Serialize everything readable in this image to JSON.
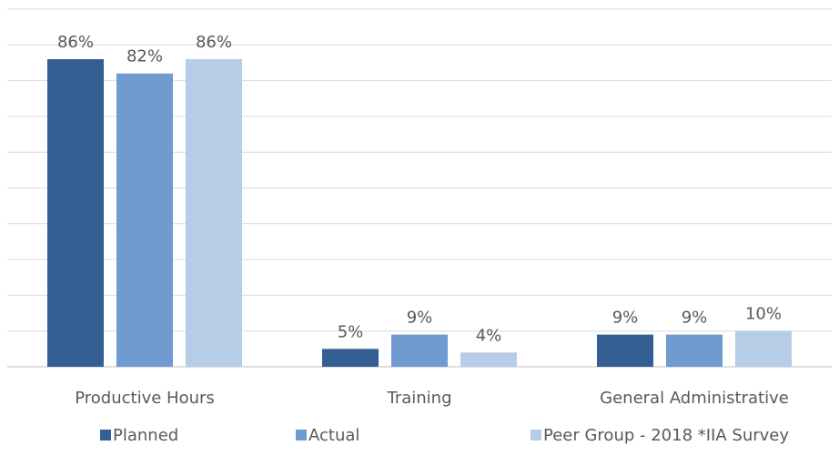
{
  "chart_data": {
    "type": "bar",
    "categories": [
      "Productive Hours",
      "Training",
      "General Administrative"
    ],
    "series": [
      {
        "name": "Planned",
        "color": "#335f92",
        "values": [
          86,
          5,
          9
        ],
        "value_labels": [
          "86%",
          "5%",
          "9%"
        ]
      },
      {
        "name": "Actual",
        "color": "#6f9bd0",
        "values": [
          82,
          9,
          9
        ],
        "value_labels": [
          "82%",
          "9%",
          "9%"
        ]
      },
      {
        "name": "Peer Group - 2018 *IIA Survey",
        "color": "#b7cce6",
        "values": [
          86,
          4,
          10
        ],
        "value_labels": [
          "86%",
          "4%",
          "10%"
        ]
      }
    ],
    "ylim": [
      0,
      100
    ],
    "yticks": [
      0,
      10,
      20,
      30,
      40,
      50,
      60,
      70,
      80,
      90,
      100
    ],
    "grid": true,
    "legend": "bottom"
  }
}
